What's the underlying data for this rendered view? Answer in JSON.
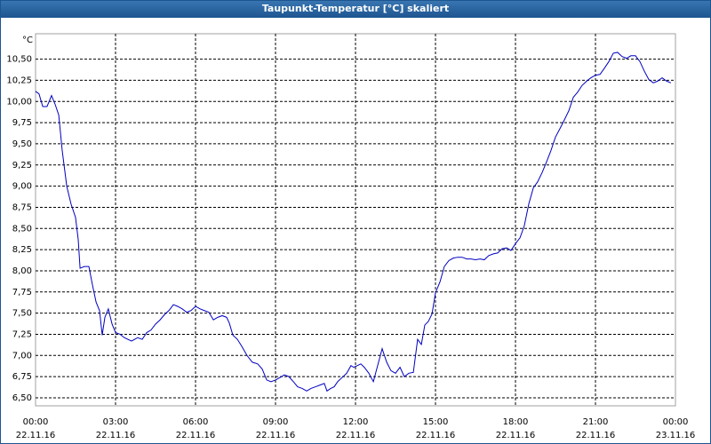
{
  "chart_data": {
    "type": "line",
    "title": "Taupunkt-Temperatur [°C] skaliert",
    "y_unit": "°C",
    "x": [
      0,
      0.13,
      0.27,
      0.43,
      0.6,
      0.73,
      0.87,
      1,
      1.17,
      1.33,
      1.5,
      1.6,
      1.67,
      1.83,
      2,
      2.13,
      2.27,
      2.4,
      2.5,
      2.6,
      2.73,
      2.87,
      3,
      3.17,
      3.33,
      3.6,
      3.83,
      4,
      4.17,
      4.33,
      4.5,
      4.67,
      4.83,
      5,
      5.17,
      5.33,
      5.5,
      5.67,
      5.83,
      6,
      6.17,
      6.33,
      6.5,
      6.67,
      6.83,
      7,
      7.17,
      7.27,
      7.4,
      7.57,
      7.73,
      7.93,
      8.13,
      8.33,
      8.5,
      8.67,
      8.83,
      9,
      9.17,
      9.33,
      9.5,
      9.67,
      9.83,
      10,
      10.17,
      10.33,
      10.5,
      10.67,
      10.83,
      10.93,
      11.07,
      11.2,
      11.33,
      11.5,
      11.67,
      11.83,
      11.93,
      12.07,
      12.2,
      12.33,
      12.5,
      12.67,
      12.83,
      13,
      13.17,
      13.33,
      13.5,
      13.67,
      13.83,
      14,
      14.17,
      14.33,
      14.47,
      14.6,
      14.73,
      14.87,
      15,
      15.17,
      15.33,
      15.5,
      15.67,
      15.83,
      16,
      16.17,
      16.33,
      16.5,
      16.67,
      16.83,
      17,
      17.17,
      17.33,
      17.5,
      17.67,
      17.83,
      18,
      18.17,
      18.33,
      18.5,
      18.67,
      18.83,
      19,
      19.17,
      19.33,
      19.5,
      19.67,
      19.83,
      20,
      20.17,
      20.33,
      20.5,
      20.67,
      20.83,
      21,
      21.17,
      21.33,
      21.5,
      21.67,
      21.83,
      22,
      22.17,
      22.33,
      22.5,
      22.67,
      22.83,
      23,
      23.17,
      23.33,
      23.5,
      23.67,
      23.83
    ],
    "series": [
      {
        "color": "#0000c0",
        "values": [
          10.12,
          10.09,
          9.94,
          9.94,
          10.07,
          9.97,
          9.84,
          9.42,
          9.0,
          8.79,
          8.63,
          8.37,
          8.03,
          8.05,
          8.05,
          7.84,
          7.63,
          7.53,
          7.24,
          7.45,
          7.55,
          7.37,
          7.27,
          7.25,
          7.21,
          7.17,
          7.21,
          7.19,
          7.27,
          7.3,
          7.37,
          7.42,
          7.48,
          7.53,
          7.6,
          7.58,
          7.55,
          7.51,
          7.53,
          7.58,
          7.55,
          7.53,
          7.51,
          7.42,
          7.45,
          7.47,
          7.45,
          7.38,
          7.24,
          7.19,
          7.11,
          7.0,
          6.92,
          6.9,
          6.84,
          6.71,
          6.69,
          6.71,
          6.74,
          6.77,
          6.75,
          6.69,
          6.63,
          6.61,
          6.58,
          6.61,
          6.63,
          6.65,
          6.67,
          6.58,
          6.61,
          6.63,
          6.69,
          6.74,
          6.79,
          6.88,
          6.86,
          6.88,
          6.9,
          6.86,
          6.79,
          6.69,
          6.88,
          7.08,
          6.92,
          6.82,
          6.79,
          6.86,
          6.75,
          6.79,
          6.8,
          7.19,
          7.13,
          7.36,
          7.4,
          7.49,
          7.74,
          7.87,
          8.05,
          8.12,
          8.15,
          8.16,
          8.16,
          8.14,
          8.14,
          8.13,
          8.14,
          8.13,
          8.18,
          8.2,
          8.21,
          8.26,
          8.27,
          8.24,
          8.32,
          8.39,
          8.53,
          8.79,
          8.98,
          9.05,
          9.16,
          9.29,
          9.42,
          9.58,
          9.68,
          9.78,
          9.89,
          10.05,
          10.11,
          10.19,
          10.24,
          10.28,
          10.31,
          10.32,
          10.39,
          10.47,
          10.57,
          10.58,
          10.53,
          10.51,
          10.54,
          10.54,
          10.47,
          10.36,
          10.26,
          10.22,
          10.24,
          10.28,
          10.24,
          10.22
        ]
      }
    ],
    "xlim": [
      0,
      24
    ],
    "xticks": [
      {
        "value": 0,
        "label": "00:00"
      },
      {
        "value": 3,
        "label": "03:00"
      },
      {
        "value": 6,
        "label": "06:00"
      },
      {
        "value": 9,
        "label": "09:00"
      },
      {
        "value": 12,
        "label": "12:00"
      },
      {
        "value": 15,
        "label": "15:00"
      },
      {
        "value": 18,
        "label": "18:00"
      },
      {
        "value": 21,
        "label": "21:00"
      },
      {
        "value": 24,
        "label": "00:00"
      }
    ],
    "xtick_dates": [
      "22.11.16",
      "22.11.16",
      "22.11.16",
      "22.11.16",
      "22.11.16",
      "22.11.16",
      "22.11.16",
      "22.11.16",
      "23.11.16"
    ],
    "ylim": [
      6.405,
      10.8
    ],
    "yticks": [
      {
        "value": 6.5,
        "label": "6,50"
      },
      {
        "value": 6.75,
        "label": "6,75"
      },
      {
        "value": 7,
        "label": "7,00"
      },
      {
        "value": 7.25,
        "label": "7,25"
      },
      {
        "value": 7.5,
        "label": "7,50"
      },
      {
        "value": 7.75,
        "label": "7,75"
      },
      {
        "value": 8,
        "label": "8,00"
      },
      {
        "value": 8.25,
        "label": "8,25"
      },
      {
        "value": 8.5,
        "label": "8,50"
      },
      {
        "value": 8.75,
        "label": "8,75"
      },
      {
        "value": 9,
        "label": "9,00"
      },
      {
        "value": 9.25,
        "label": "9,25"
      },
      {
        "value": 9.5,
        "label": "9,50"
      },
      {
        "value": 9.75,
        "label": "9,75"
      },
      {
        "value": 10,
        "label": "10,00"
      },
      {
        "value": 10.25,
        "label": "10,25"
      },
      {
        "value": 10.5,
        "label": "10,50"
      }
    ],
    "grid": true
  }
}
